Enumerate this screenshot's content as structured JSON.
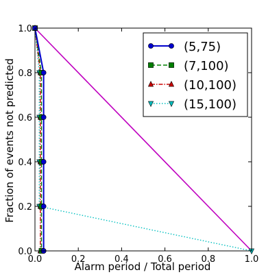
{
  "chart_data": {
    "type": "line",
    "title": "",
    "xlabel": "Alarm period / Total period",
    "ylabel": "Fraction of events not predicted",
    "xlim": [
      0.0,
      1.0
    ],
    "ylim": [
      0.0,
      1.0
    ],
    "xticks": [
      "0.0",
      "0.2",
      "0.4",
      "0.6",
      "0.8",
      "1.0"
    ],
    "yticks": [
      "0.0",
      "0.2",
      "0.4",
      "0.6",
      "0.8",
      "1.0"
    ],
    "grid": false,
    "legend_position": "top-right",
    "series": [
      {
        "name": "(5,75)",
        "color": "#0000cc",
        "style": "solid",
        "marker": "circle",
        "x": [
          0.0,
          0.04,
          0.04,
          0.04,
          0.04,
          0.04,
          0.04
        ],
        "y": [
          1.0,
          0.8,
          0.6,
          0.4,
          0.2,
          0.0,
          0.0
        ]
      },
      {
        "name": "(7,100)",
        "color": "#007f00",
        "style": "dashed",
        "marker": "square",
        "x": [
          0.0,
          0.03,
          0.03,
          0.03,
          0.03,
          0.03
        ],
        "y": [
          1.0,
          0.8,
          0.6,
          0.4,
          0.2,
          0.0
        ]
      },
      {
        "name": "(10,100)",
        "color": "#cc0000",
        "style": "dashdot",
        "marker": "triangle-up",
        "x": [
          0.0,
          0.025,
          0.025,
          0.025,
          0.025,
          0.025
        ],
        "y": [
          1.0,
          0.8,
          0.6,
          0.4,
          0.2,
          0.0
        ]
      },
      {
        "name": "(15,100)",
        "color": "#00bfbf",
        "style": "dotted",
        "marker": "triangle-down",
        "x": [
          0.0,
          0.02,
          0.02,
          0.02,
          0.02,
          1.0
        ],
        "y": [
          1.0,
          0.8,
          0.6,
          0.4,
          0.2,
          0.0
        ]
      }
    ],
    "reference_line": {
      "color": "#bf00bf",
      "x": [
        0.0,
        1.0
      ],
      "y": [
        1.0,
        0.0
      ]
    }
  }
}
